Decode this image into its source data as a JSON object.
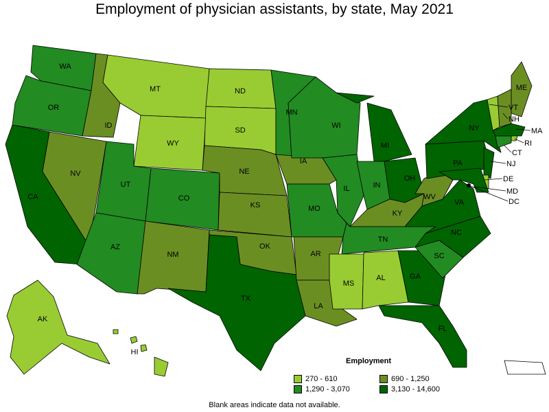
{
  "title": "Employment of physician assistants, by state, May 2021",
  "footnote": "Blank areas indicate data not available.",
  "legend": {
    "title": "Employment",
    "items": [
      {
        "label": "270 - 610",
        "color": "#99cc33"
      },
      {
        "label": "690 - 1,250",
        "color": "#6b8e23"
      },
      {
        "label": "1,290 - 3,070",
        "color": "#228b22"
      },
      {
        "label": "3,130 - 14,600",
        "color": "#006400"
      }
    ]
  },
  "map_data": {
    "type": "choropleth",
    "states": [
      {
        "code": "WA",
        "bin": 2
      },
      {
        "code": "OR",
        "bin": 2
      },
      {
        "code": "CA",
        "bin": 3
      },
      {
        "code": "NV",
        "bin": 1
      },
      {
        "code": "ID",
        "bin": 1
      },
      {
        "code": "MT",
        "bin": 0
      },
      {
        "code": "WY",
        "bin": 0
      },
      {
        "code": "UT",
        "bin": 2
      },
      {
        "code": "AZ",
        "bin": 2
      },
      {
        "code": "CO",
        "bin": 2
      },
      {
        "code": "NM",
        "bin": 1
      },
      {
        "code": "ND",
        "bin": 0
      },
      {
        "code": "SD",
        "bin": 0
      },
      {
        "code": "NE",
        "bin": 1
      },
      {
        "code": "KS",
        "bin": 1
      },
      {
        "code": "OK",
        "bin": 1
      },
      {
        "code": "TX",
        "bin": 3
      },
      {
        "code": "MN",
        "bin": 2
      },
      {
        "code": "IA",
        "bin": 1
      },
      {
        "code": "MO",
        "bin": 2
      },
      {
        "code": "AR",
        "bin": 1
      },
      {
        "code": "LA",
        "bin": 1
      },
      {
        "code": "WI",
        "bin": 2
      },
      {
        "code": "IL",
        "bin": 2
      },
      {
        "code": "MI",
        "bin": 3
      },
      {
        "code": "IN",
        "bin": 2
      },
      {
        "code": "OH",
        "bin": 3
      },
      {
        "code": "KY",
        "bin": 1
      },
      {
        "code": "TN",
        "bin": 2
      },
      {
        "code": "MS",
        "bin": 0
      },
      {
        "code": "AL",
        "bin": 0
      },
      {
        "code": "GA",
        "bin": 3
      },
      {
        "code": "FL",
        "bin": 3
      },
      {
        "code": "SC",
        "bin": 2
      },
      {
        "code": "NC",
        "bin": 3
      },
      {
        "code": "VA",
        "bin": 3
      },
      {
        "code": "WV",
        "bin": 1
      },
      {
        "code": "PA",
        "bin": 3
      },
      {
        "code": "NY",
        "bin": 3
      },
      {
        "code": "ME",
        "bin": 1
      },
      {
        "code": "VT",
        "bin": 0
      },
      {
        "code": "NH",
        "bin": 1
      },
      {
        "code": "MA",
        "bin": 3
      },
      {
        "code": "RI",
        "bin": 0
      },
      {
        "code": "CT",
        "bin": 2
      },
      {
        "code": "NJ",
        "bin": 3
      },
      {
        "code": "DE",
        "bin": 0
      },
      {
        "code": "MD",
        "bin": 3
      },
      {
        "code": "DC",
        "bin": 3
      },
      {
        "code": "AK",
        "bin": 0
      },
      {
        "code": "HI",
        "bin": 0
      },
      {
        "code": "PR",
        "bin": null
      }
    ]
  }
}
